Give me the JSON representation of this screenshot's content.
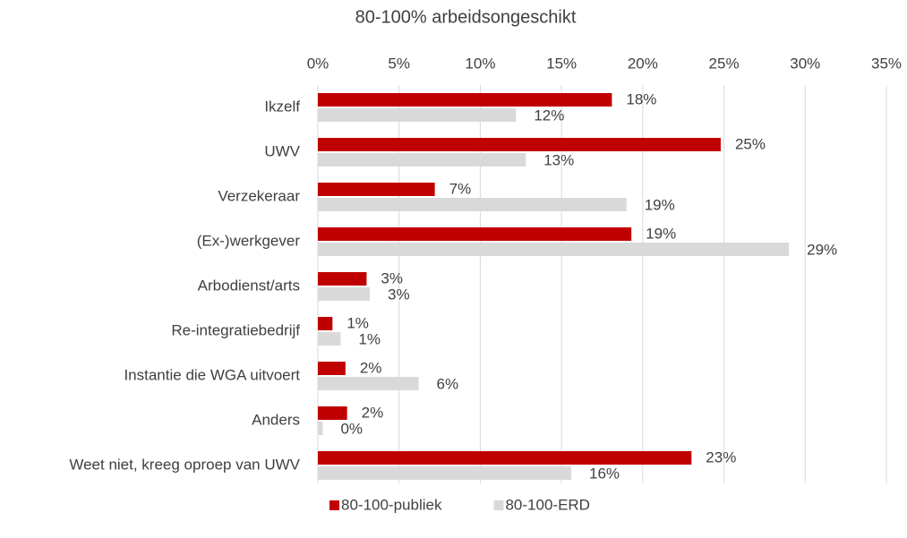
{
  "chart_data": {
    "type": "hbar",
    "title": "80-100% arbeidsongeschikt",
    "categories": [
      "Ikzelf",
      "UWV",
      "Verzekeraar",
      "(Ex-)werkgever",
      "Arbodienst/arts",
      "Re-integratiebedrijf",
      "Instantie die WGA uitvoert",
      "Anders",
      "Weet niet, kreeg oproep van UWV"
    ],
    "series": [
      {
        "name": "80-100-publiek",
        "color": "#c00000",
        "values": [
          18.1,
          24.8,
          7.2,
          19.3,
          3.0,
          0.9,
          1.7,
          1.8,
          23.0
        ],
        "value_labels": [
          "18%",
          "25%",
          "7%",
          "19%",
          "3%",
          "1%",
          "2%",
          "2%",
          "23%"
        ]
      },
      {
        "name": "80-100-ERD",
        "color": "#d9d9d9",
        "values": [
          12.2,
          12.8,
          19.0,
          29.0,
          3.2,
          1.4,
          6.2,
          0.3,
          15.6
        ],
        "value_labels": [
          "12%",
          "13%",
          "19%",
          "29%",
          "3%",
          "1%",
          "6%",
          "0%",
          "16%"
        ]
      }
    ],
    "xlim": [
      0,
      35
    ],
    "xticks": [
      {
        "value": 0,
        "label": "0%"
      },
      {
        "value": 5,
        "label": "5%"
      },
      {
        "value": 10,
        "label": "10%"
      },
      {
        "value": 15,
        "label": "15%"
      },
      {
        "value": 20,
        "label": "20%"
      },
      {
        "value": 25,
        "label": "25%"
      },
      {
        "value": 30,
        "label": "30%"
      },
      {
        "value": 35,
        "label": "35%"
      }
    ],
    "grid": true,
    "legend": "bottom"
  }
}
